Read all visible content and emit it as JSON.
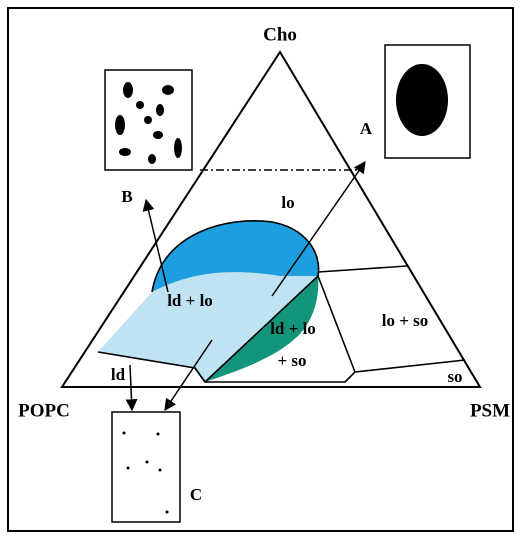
{
  "vertices": {
    "top": "Cho",
    "left": "POPC",
    "right": "PSM"
  },
  "regions": {
    "lo": "lo",
    "ld_lo": "ld + lo",
    "ld_lo_so": [
      "ld + lo",
      "+ so"
    ],
    "lo_so": "lo + so",
    "ld": "ld",
    "so": "so"
  },
  "insets": {
    "a": "A",
    "b": "B",
    "c": "C"
  }
}
